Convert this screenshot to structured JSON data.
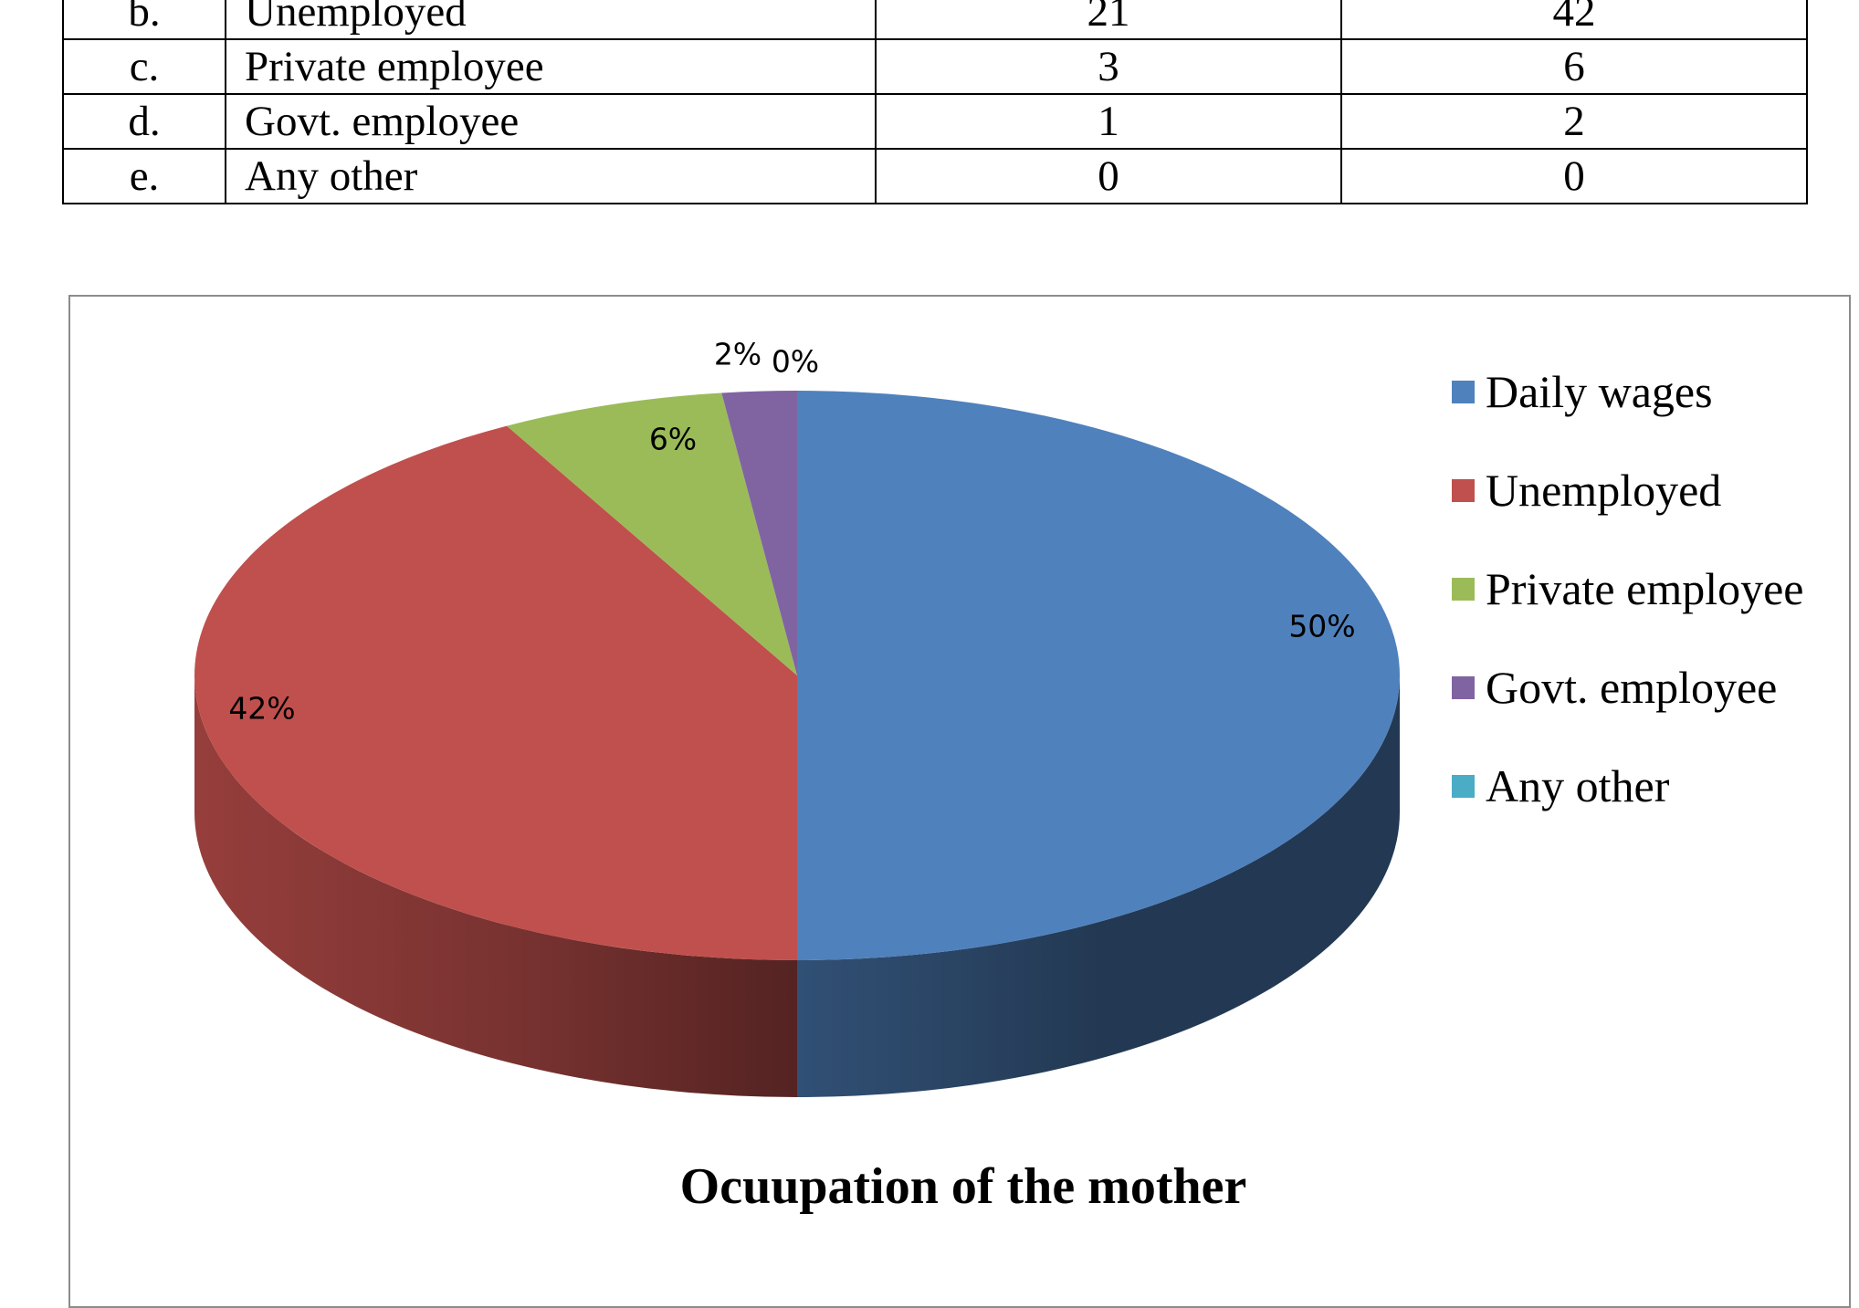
{
  "table": {
    "rows": [
      {
        "idx": "b.",
        "label": "Unemployed",
        "count": "21",
        "percent": "42"
      },
      {
        "idx": "c.",
        "label": "Private employee",
        "count": "3",
        "percent": "6"
      },
      {
        "idx": "d.",
        "label": "Govt. employee",
        "count": "1",
        "percent": "2"
      },
      {
        "idx": "e.",
        "label": "Any other",
        "count": "0",
        "percent": "0"
      }
    ]
  },
  "chart_data": {
    "type": "pie",
    "title": "Ocuupation of the mother",
    "categories": [
      "Daily wages",
      "Unemployed",
      "Private employee",
      "Govt. employee",
      "Any other"
    ],
    "values": [
      50,
      42,
      6,
      2,
      0
    ],
    "data_labels": [
      "50%",
      "42%",
      "6%",
      "2%",
      "0%"
    ],
    "colors": [
      "#4f81bd",
      "#c0504d",
      "#9bbb59",
      "#8064a2",
      "#4bacc6"
    ],
    "legend_position": "right",
    "style": "3d"
  }
}
